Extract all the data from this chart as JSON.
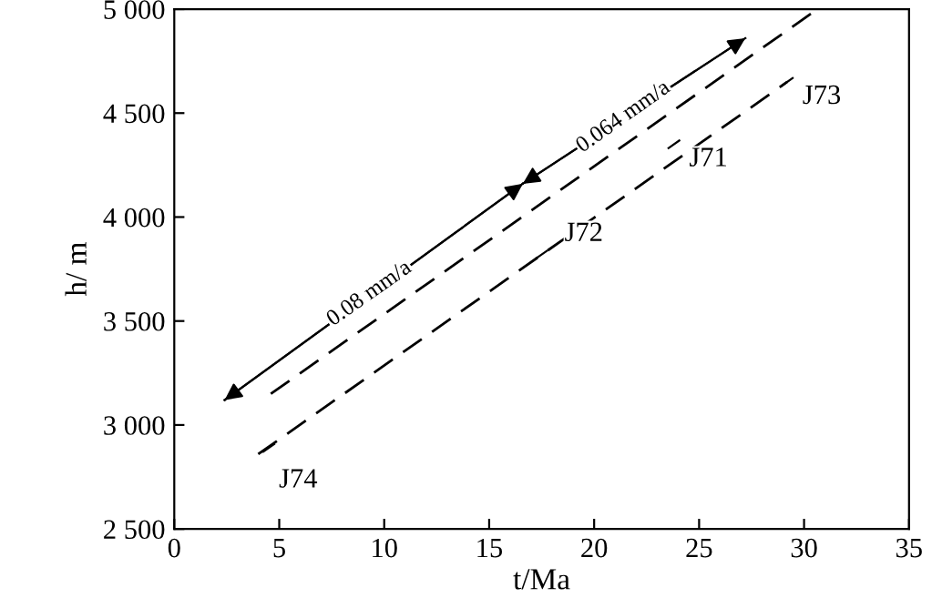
{
  "chart_data": {
    "type": "line",
    "xlabel": "t/Ma",
    "ylabel": "h/ m",
    "xlim": [
      0,
      35
    ],
    "xticks": [
      0,
      5,
      10,
      15,
      20,
      25,
      30,
      35
    ],
    "ylim": [
      2500,
      5000
    ],
    "yticks": [
      {
        "value": 2500,
        "label": "2 500"
      },
      {
        "value": 3000,
        "label": "3 000"
      },
      {
        "value": 3500,
        "label": "3 500"
      },
      {
        "value": 4000,
        "label": "4 000"
      },
      {
        "value": 4500,
        "label": "4 500"
      },
      {
        "value": 5000,
        "label": "5 000"
      }
    ],
    "grid": false,
    "marker": "none",
    "series": [
      {
        "line_style": "dashed",
        "color": "#000000",
        "x": [
          4.6,
          30.5
        ],
        "values": [
          3150,
          4990
        ]
      },
      {
        "line_style": "dashed",
        "color": "#000000",
        "x": [
          4,
          29.2
        ],
        "values": [
          2860,
          4650
        ]
      },
      {
        "line_style": "solid",
        "color": "#000000",
        "x": [
          2.4,
          16.6,
          27.2
        ],
        "values": [
          3120,
          4160,
          4860
        ]
      }
    ],
    "annotations": [
      {
        "text": "0.08 mm/a",
        "x": 9.3,
        "y": 3630
      },
      {
        "text": "0.064 mm/a",
        "x": 21.4,
        "y": 4480
      },
      {
        "text": "J74",
        "x": 4.5,
        "y": 2890
      },
      {
        "text": "J72",
        "x": 17.5,
        "y": 3820
      },
      {
        "text": "J71",
        "x": 23.8,
        "y": 4350
      },
      {
        "text": "J73",
        "x": 29.2,
        "y": 4650
      }
    ]
  }
}
